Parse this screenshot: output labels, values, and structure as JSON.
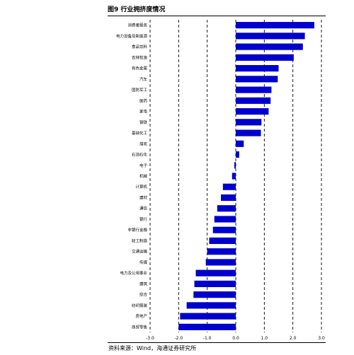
{
  "figure": {
    "title": "图9 行业拥挤度情况",
    "source": "资料来源：Wind，海通证券研究所"
  },
  "chart_data": {
    "type": "bar",
    "orientation": "horizontal",
    "bar_color": "#0000cc",
    "grid": "dashed vertical",
    "xlim": [
      -3.0,
      3.0
    ],
    "x_ticks": [
      -3.0,
      -2.0,
      -1.0,
      0.0,
      1.0,
      2.0,
      3.0
    ],
    "x_tick_labels": [
      "-3.0",
      "-2.0",
      "-1.0",
      "0.0",
      "1.0",
      "2.0",
      "3.0"
    ],
    "categories": [
      "消费者服务",
      "电力设备及新能源",
      "食品饮料",
      "农林牧渔",
      "有色金属",
      "汽车",
      "国防军工",
      "医药",
      "家电",
      "钢铁",
      "基础化工",
      "煤炭",
      "石油石化",
      "电子",
      "机械",
      "计算机",
      "建材",
      "通信",
      "银行",
      "非银行金融",
      "轻工制造",
      "交通运输",
      "传媒",
      "电力及公用事业",
      "建筑",
      "综合",
      "纺织服装",
      "房地产",
      "商贸零售"
    ],
    "values": [
      2.75,
      2.42,
      2.35,
      2.03,
      1.5,
      1.47,
      1.25,
      1.22,
      1.15,
      0.9,
      0.88,
      0.28,
      0.12,
      -0.05,
      -0.13,
      -0.45,
      -0.52,
      -0.65,
      -0.75,
      -0.8,
      -0.93,
      -1.0,
      -1.05,
      -1.4,
      -1.45,
      -1.48,
      -1.72,
      -1.95,
      -2.0
    ]
  }
}
